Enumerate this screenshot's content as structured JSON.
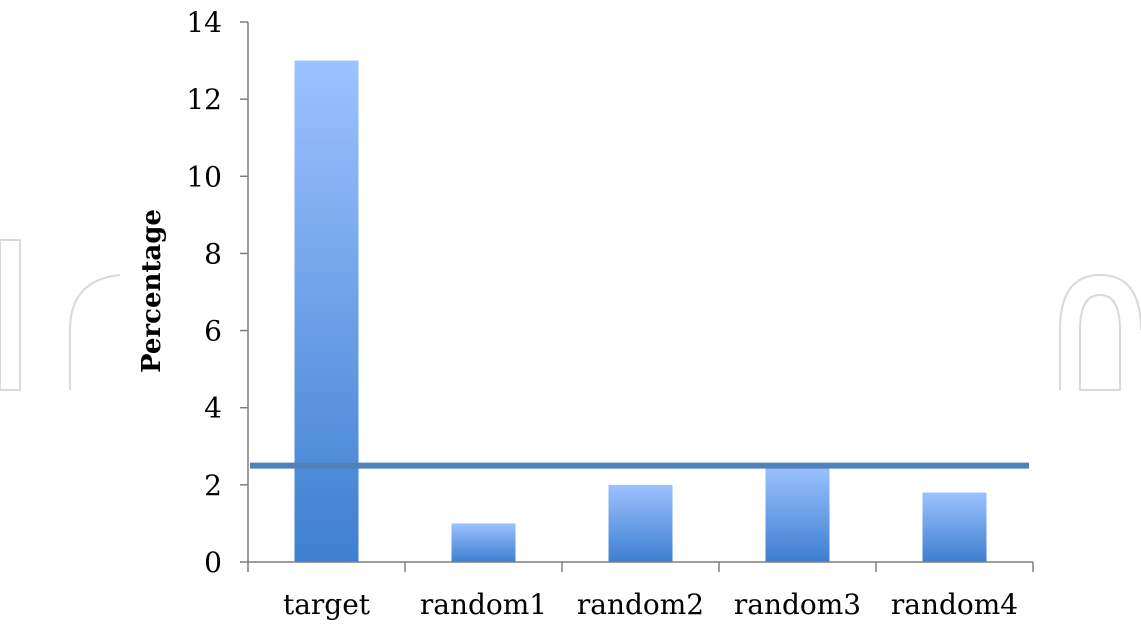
{
  "chart_data": {
    "type": "bar",
    "categories": [
      "target",
      "random1",
      "random2",
      "random3",
      "random4"
    ],
    "values": [
      13,
      1,
      2,
      2.5,
      1.8
    ],
    "title": "",
    "xlabel": "",
    "ylabel": "Percentage",
    "ylim": [
      0,
      14
    ],
    "yticks": [
      "0",
      "2",
      "4",
      "6",
      "8",
      "10",
      "12",
      "14"
    ],
    "reference_line": {
      "value": 2.5,
      "color": "#4f81bd"
    },
    "bar_colors": {
      "top": "#9cc2ff",
      "bottom": "#3d7fd0"
    },
    "grid": false,
    "legend": "none"
  }
}
